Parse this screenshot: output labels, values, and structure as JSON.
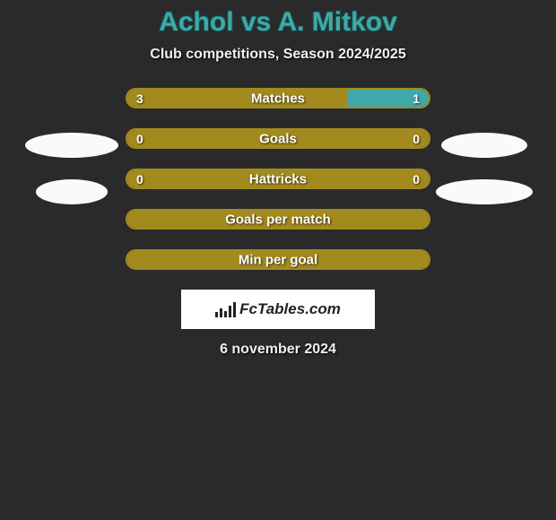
{
  "title": "Achol vs A. Mitkov",
  "subtitle": "Club competitions, Season 2024/2025",
  "date": "6 november 2024",
  "logo_text": "FcTables.com",
  "colors": {
    "border": "#a38a1f",
    "player1_fill": "#a38a1f",
    "player2_fill": "#3fa9a9",
    "background": "#2a2a2a"
  },
  "stats": [
    {
      "label": "Matches",
      "p1_val": "3",
      "p2_val": "1",
      "p1_pct": 73,
      "p2_pct": 27,
      "show_vals": true
    },
    {
      "label": "Goals",
      "p1_val": "0",
      "p2_val": "0",
      "p1_pct": 100,
      "p2_pct": 0,
      "show_vals": true
    },
    {
      "label": "Hattricks",
      "p1_val": "0",
      "p2_val": "0",
      "p1_pct": 100,
      "p2_pct": 0,
      "show_vals": true
    },
    {
      "label": "Goals per match",
      "p1_val": "",
      "p2_val": "",
      "p1_pct": 100,
      "p2_pct": 0,
      "show_vals": false
    },
    {
      "label": "Min per goal",
      "p1_val": "",
      "p2_val": "",
      "p1_pct": 100,
      "p2_pct": 0,
      "show_vals": false
    }
  ]
}
